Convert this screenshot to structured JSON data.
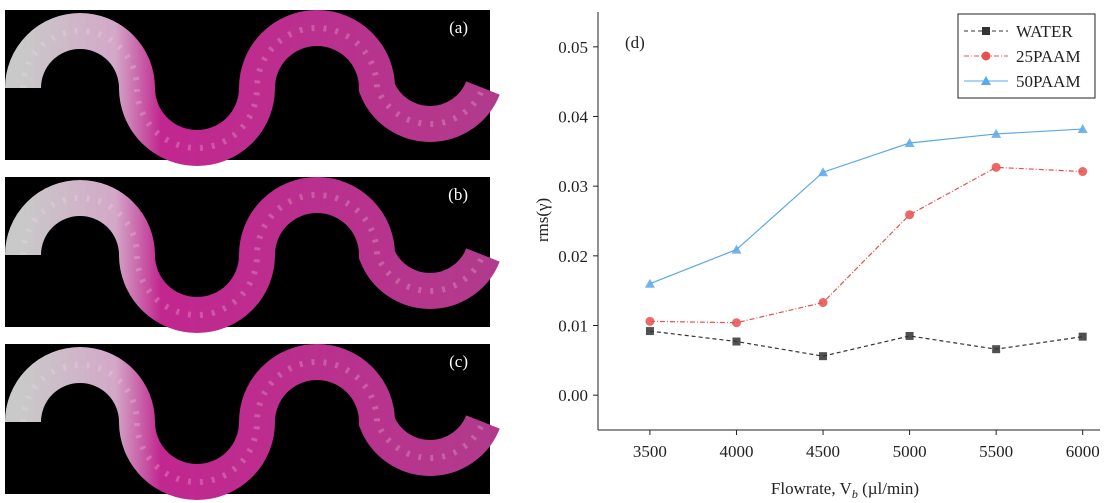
{
  "panels": [
    {
      "label": "(a)"
    },
    {
      "label": "(b)"
    },
    {
      "label": "(c)"
    }
  ],
  "chart_data": {
    "type": "line",
    "panel_label": "(d)",
    "x_label": [
      "Flowrate, V",
      "b",
      " (µl/min)"
    ],
    "y_label": "rms(γ)",
    "x": [
      3500,
      4000,
      4500,
      5000,
      5500,
      6000
    ],
    "series": [
      {
        "name": "WATER",
        "color": "#333333",
        "marker": "square",
        "dash": "4,3",
        "values": [
          0.0092,
          0.0077,
          0.0056,
          0.0085,
          0.0066,
          0.0084
        ]
      },
      {
        "name": "25PAAM",
        "color": "#e8504f",
        "marker": "circle",
        "dash": "5,2,1,2",
        "values": [
          0.0106,
          0.0104,
          0.0133,
          0.0259,
          0.0327,
          0.0321
        ]
      },
      {
        "name": "50PAAM",
        "color": "#5aa8e8",
        "marker": "triangle",
        "dash": "none",
        "values": [
          0.016,
          0.0209,
          0.032,
          0.0362,
          0.0375,
          0.0382
        ]
      }
    ],
    "xlim": [
      3200,
      6100
    ],
    "ylim": [
      -0.005,
      0.055
    ],
    "xticks": [
      3500,
      4000,
      4500,
      5000,
      5500,
      6000
    ],
    "yticks": [
      {
        "value": 0,
        "label": "0.00"
      },
      0.01,
      0.02,
      0.03,
      0.04,
      0.05
    ]
  }
}
